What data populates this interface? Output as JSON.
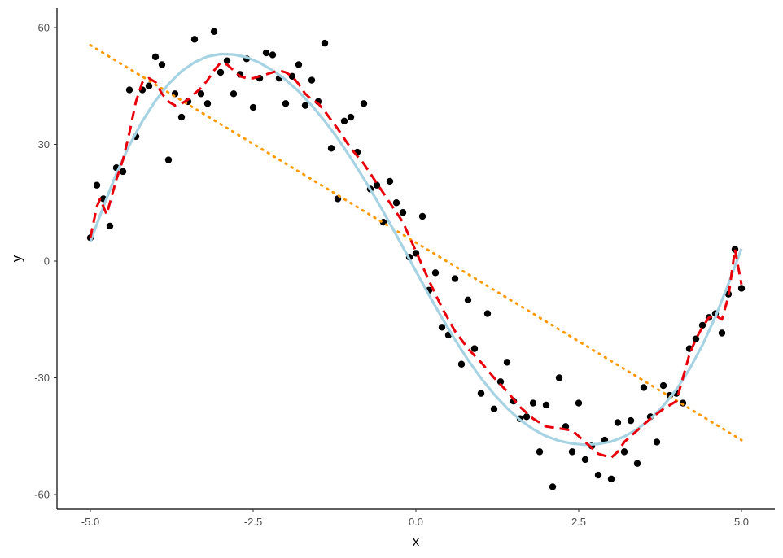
{
  "chart_data": {
    "type": "scatter",
    "title": "",
    "xlabel": "x",
    "ylabel": "y",
    "xlim": [
      -5.2,
      5.2
    ],
    "ylim": [
      -63,
      64
    ],
    "grid": false,
    "x_ticks": [
      -5.0,
      -2.5,
      0.0,
      2.5,
      5.0
    ],
    "x_tick_labels": [
      "-5.0",
      "-2.5",
      "0.0",
      "2.5",
      "5.0"
    ],
    "y_ticks": [
      60,
      30,
      0,
      -30,
      -60
    ],
    "y_tick_labels": [
      "60",
      "30",
      "0",
      "-30",
      "-60"
    ],
    "colors": {
      "points": "#000000",
      "smooth_curve": "#a6d3e3",
      "jagged_line": "#e8000b",
      "linear_fit": "#ff9900",
      "axis": "#000000"
    },
    "series": [
      {
        "kind": "points",
        "values": [
          [
            -5.0,
            6
          ],
          [
            -4.9,
            19.5
          ],
          [
            -4.8,
            16
          ],
          [
            -4.7,
            9
          ],
          [
            -4.6,
            24
          ],
          [
            -4.5,
            23
          ],
          [
            -4.4,
            44
          ],
          [
            -4.3,
            32
          ],
          [
            -4.2,
            44
          ],
          [
            -4.1,
            45
          ],
          [
            -4.0,
            52.5
          ],
          [
            -3.9,
            50.5
          ],
          [
            -3.8,
            26
          ],
          [
            -3.7,
            43
          ],
          [
            -3.6,
            37
          ],
          [
            -3.5,
            41
          ],
          [
            -3.4,
            57
          ],
          [
            -3.3,
            43
          ],
          [
            -3.2,
            40.5
          ],
          [
            -3.1,
            59
          ],
          [
            -3.0,
            48.5
          ],
          [
            -2.9,
            51.5
          ],
          [
            -2.8,
            43
          ],
          [
            -2.7,
            48
          ],
          [
            -2.6,
            52
          ],
          [
            -2.5,
            39.5
          ],
          [
            -2.4,
            47
          ],
          [
            -2.3,
            53.5
          ],
          [
            -2.2,
            53
          ],
          [
            -2.1,
            47
          ],
          [
            -2.0,
            40.5
          ],
          [
            -1.9,
            47.5
          ],
          [
            -1.8,
            50.5
          ],
          [
            -1.7,
            40
          ],
          [
            -1.6,
            46.5
          ],
          [
            -1.5,
            41
          ],
          [
            -1.4,
            56
          ],
          [
            -1.3,
            29
          ],
          [
            -1.2,
            16
          ],
          [
            -1.1,
            36
          ],
          [
            -1.0,
            37
          ],
          [
            -0.9,
            28
          ],
          [
            -0.8,
            40.5
          ],
          [
            -0.7,
            18.5
          ],
          [
            -0.6,
            19.5
          ],
          [
            -0.5,
            10
          ],
          [
            -0.4,
            20.5
          ],
          [
            -0.3,
            15
          ],
          [
            -0.2,
            12.5
          ],
          [
            -0.1,
            1
          ],
          [
            0.0,
            2
          ],
          [
            0.1,
            11.5
          ],
          [
            0.2,
            -7.5
          ],
          [
            0.3,
            -3
          ],
          [
            0.4,
            -17
          ],
          [
            0.5,
            -19
          ],
          [
            0.6,
            -4.5
          ],
          [
            0.7,
            -26.5
          ],
          [
            0.8,
            -10
          ],
          [
            0.9,
            -22.5
          ],
          [
            1.0,
            -34
          ],
          [
            1.1,
            -13.5
          ],
          [
            1.2,
            -38
          ],
          [
            1.3,
            -31
          ],
          [
            1.4,
            -26
          ],
          [
            1.5,
            -36
          ],
          [
            1.6,
            -40.5
          ],
          [
            1.7,
            -40
          ],
          [
            1.8,
            -36.5
          ],
          [
            1.9,
            -49
          ],
          [
            2.0,
            -37
          ],
          [
            2.1,
            -58
          ],
          [
            2.2,
            -30
          ],
          [
            2.3,
            -42.5
          ],
          [
            2.4,
            -49
          ],
          [
            2.5,
            -36.5
          ],
          [
            2.6,
            -51
          ],
          [
            2.7,
            -47.5
          ],
          [
            2.8,
            -55
          ],
          [
            2.9,
            -46
          ],
          [
            3.0,
            -56
          ],
          [
            3.1,
            -41.5
          ],
          [
            3.2,
            -49
          ],
          [
            3.3,
            -41
          ],
          [
            3.4,
            -52
          ],
          [
            3.5,
            -32.5
          ],
          [
            3.6,
            -40
          ],
          [
            3.7,
            -46.5
          ],
          [
            3.8,
            -32
          ],
          [
            3.9,
            -34.5
          ],
          [
            4.0,
            -34
          ],
          [
            4.1,
            -36.5
          ],
          [
            4.2,
            -22.5
          ],
          [
            4.3,
            -20
          ],
          [
            4.4,
            -16.5
          ],
          [
            4.5,
            -14.5
          ],
          [
            4.6,
            -13.5
          ],
          [
            4.7,
            -18.5
          ],
          [
            4.8,
            -8.5
          ],
          [
            4.9,
            3
          ],
          [
            5.0,
            -7
          ]
        ]
      },
      {
        "kind": "smooth_curve",
        "style": "solid",
        "values": [
          [
            -5.0,
            5
          ],
          [
            -4.8,
            14
          ],
          [
            -4.6,
            22.5
          ],
          [
            -4.4,
            29.8
          ],
          [
            -4.2,
            36
          ],
          [
            -4.0,
            41.2
          ],
          [
            -3.8,
            45.5
          ],
          [
            -3.6,
            48.8
          ],
          [
            -3.4,
            51.1
          ],
          [
            -3.2,
            52.6
          ],
          [
            -3.0,
            53.2
          ],
          [
            -2.8,
            53.1
          ],
          [
            -2.6,
            52.4
          ],
          [
            -2.4,
            51
          ],
          [
            -2.2,
            49
          ],
          [
            -2.0,
            46.6
          ],
          [
            -1.8,
            43.6
          ],
          [
            -1.6,
            40
          ],
          [
            -1.4,
            36
          ],
          [
            -1.2,
            31.5
          ],
          [
            -1.0,
            26.5
          ],
          [
            -0.8,
            21.2
          ],
          [
            -0.6,
            15.6
          ],
          [
            -0.4,
            9.7
          ],
          [
            -0.2,
            3.6
          ],
          [
            0.0,
            -2.6
          ],
          [
            0.2,
            -8.7
          ],
          [
            0.4,
            -14.6
          ],
          [
            0.6,
            -20.2
          ],
          [
            0.8,
            -25.4
          ],
          [
            1.0,
            -30.1
          ],
          [
            1.2,
            -34.2
          ],
          [
            1.4,
            -37.8
          ],
          [
            1.6,
            -40.8
          ],
          [
            1.8,
            -43.2
          ],
          [
            2.0,
            -45
          ],
          [
            2.2,
            -46.2
          ],
          [
            2.4,
            -46.9
          ],
          [
            2.6,
            -47.2
          ],
          [
            2.8,
            -47
          ],
          [
            3.0,
            -46.4
          ],
          [
            3.2,
            -45.1
          ],
          [
            3.4,
            -43.2
          ],
          [
            3.6,
            -40.6
          ],
          [
            3.8,
            -37.2
          ],
          [
            4.0,
            -33
          ],
          [
            4.2,
            -27.8
          ],
          [
            4.4,
            -21.6
          ],
          [
            4.6,
            -14.3
          ],
          [
            4.8,
            -5.8
          ],
          [
            5.0,
            3.2
          ]
        ]
      },
      {
        "kind": "jagged_line",
        "style": "dashed",
        "values": [
          [
            -5.0,
            6
          ],
          [
            -4.9,
            14
          ],
          [
            -4.85,
            16
          ],
          [
            -4.75,
            12
          ],
          [
            -4.6,
            21
          ],
          [
            -4.5,
            26
          ],
          [
            -4.4,
            33
          ],
          [
            -4.3,
            41
          ],
          [
            -4.2,
            46
          ],
          [
            -4.1,
            47
          ],
          [
            -4.0,
            46
          ],
          [
            -3.9,
            43
          ],
          [
            -3.8,
            41
          ],
          [
            -3.7,
            40
          ],
          [
            -3.6,
            40.5
          ],
          [
            -3.5,
            41.5
          ],
          [
            -3.4,
            43
          ],
          [
            -3.3,
            44.5
          ],
          [
            -3.2,
            46.5
          ],
          [
            -3.1,
            49
          ],
          [
            -3.0,
            51
          ],
          [
            -2.9,
            50.5
          ],
          [
            -2.8,
            49
          ],
          [
            -2.7,
            47.5
          ],
          [
            -2.6,
            47
          ],
          [
            -2.5,
            47
          ],
          [
            -2.4,
            47.5
          ],
          [
            -2.3,
            48
          ],
          [
            -2.2,
            48.5
          ],
          [
            -2.1,
            49
          ],
          [
            -2.0,
            48.5
          ],
          [
            -1.9,
            47.5
          ],
          [
            -1.8,
            45.5
          ],
          [
            -1.7,
            43
          ],
          [
            -1.6,
            41.5
          ],
          [
            -1.5,
            40.5
          ],
          [
            -1.4,
            38.5
          ],
          [
            -1.2,
            34
          ],
          [
            -1.0,
            29
          ],
          [
            -0.8,
            25
          ],
          [
            -0.6,
            20
          ],
          [
            -0.4,
            15
          ],
          [
            -0.2,
            10
          ],
          [
            0.0,
            2.5
          ],
          [
            0.2,
            -5
          ],
          [
            0.4,
            -12
          ],
          [
            0.6,
            -18
          ],
          [
            0.8,
            -22.5
          ],
          [
            1.0,
            -26
          ],
          [
            1.2,
            -30
          ],
          [
            1.4,
            -33.5
          ],
          [
            1.6,
            -37.5
          ],
          [
            1.8,
            -40.5
          ],
          [
            2.0,
            -42.5
          ],
          [
            2.2,
            -43
          ],
          [
            2.4,
            -43.5
          ],
          [
            2.6,
            -46.5
          ],
          [
            2.8,
            -49.5
          ],
          [
            3.0,
            -50.5
          ],
          [
            3.1,
            -49
          ],
          [
            3.2,
            -46.5
          ],
          [
            3.4,
            -43.5
          ],
          [
            3.6,
            -40.5
          ],
          [
            3.8,
            -38
          ],
          [
            4.0,
            -36
          ],
          [
            4.2,
            -24
          ],
          [
            4.3,
            -20
          ],
          [
            4.4,
            -17
          ],
          [
            4.5,
            -14.5
          ],
          [
            4.6,
            -14
          ],
          [
            4.7,
            -15
          ],
          [
            4.8,
            -9
          ],
          [
            4.9,
            3
          ],
          [
            5.0,
            -6
          ]
        ]
      },
      {
        "kind": "linear_fit",
        "style": "dotted",
        "values": [
          [
            -5.0,
            55.5
          ],
          [
            5.0,
            -46
          ]
        ]
      }
    ]
  }
}
